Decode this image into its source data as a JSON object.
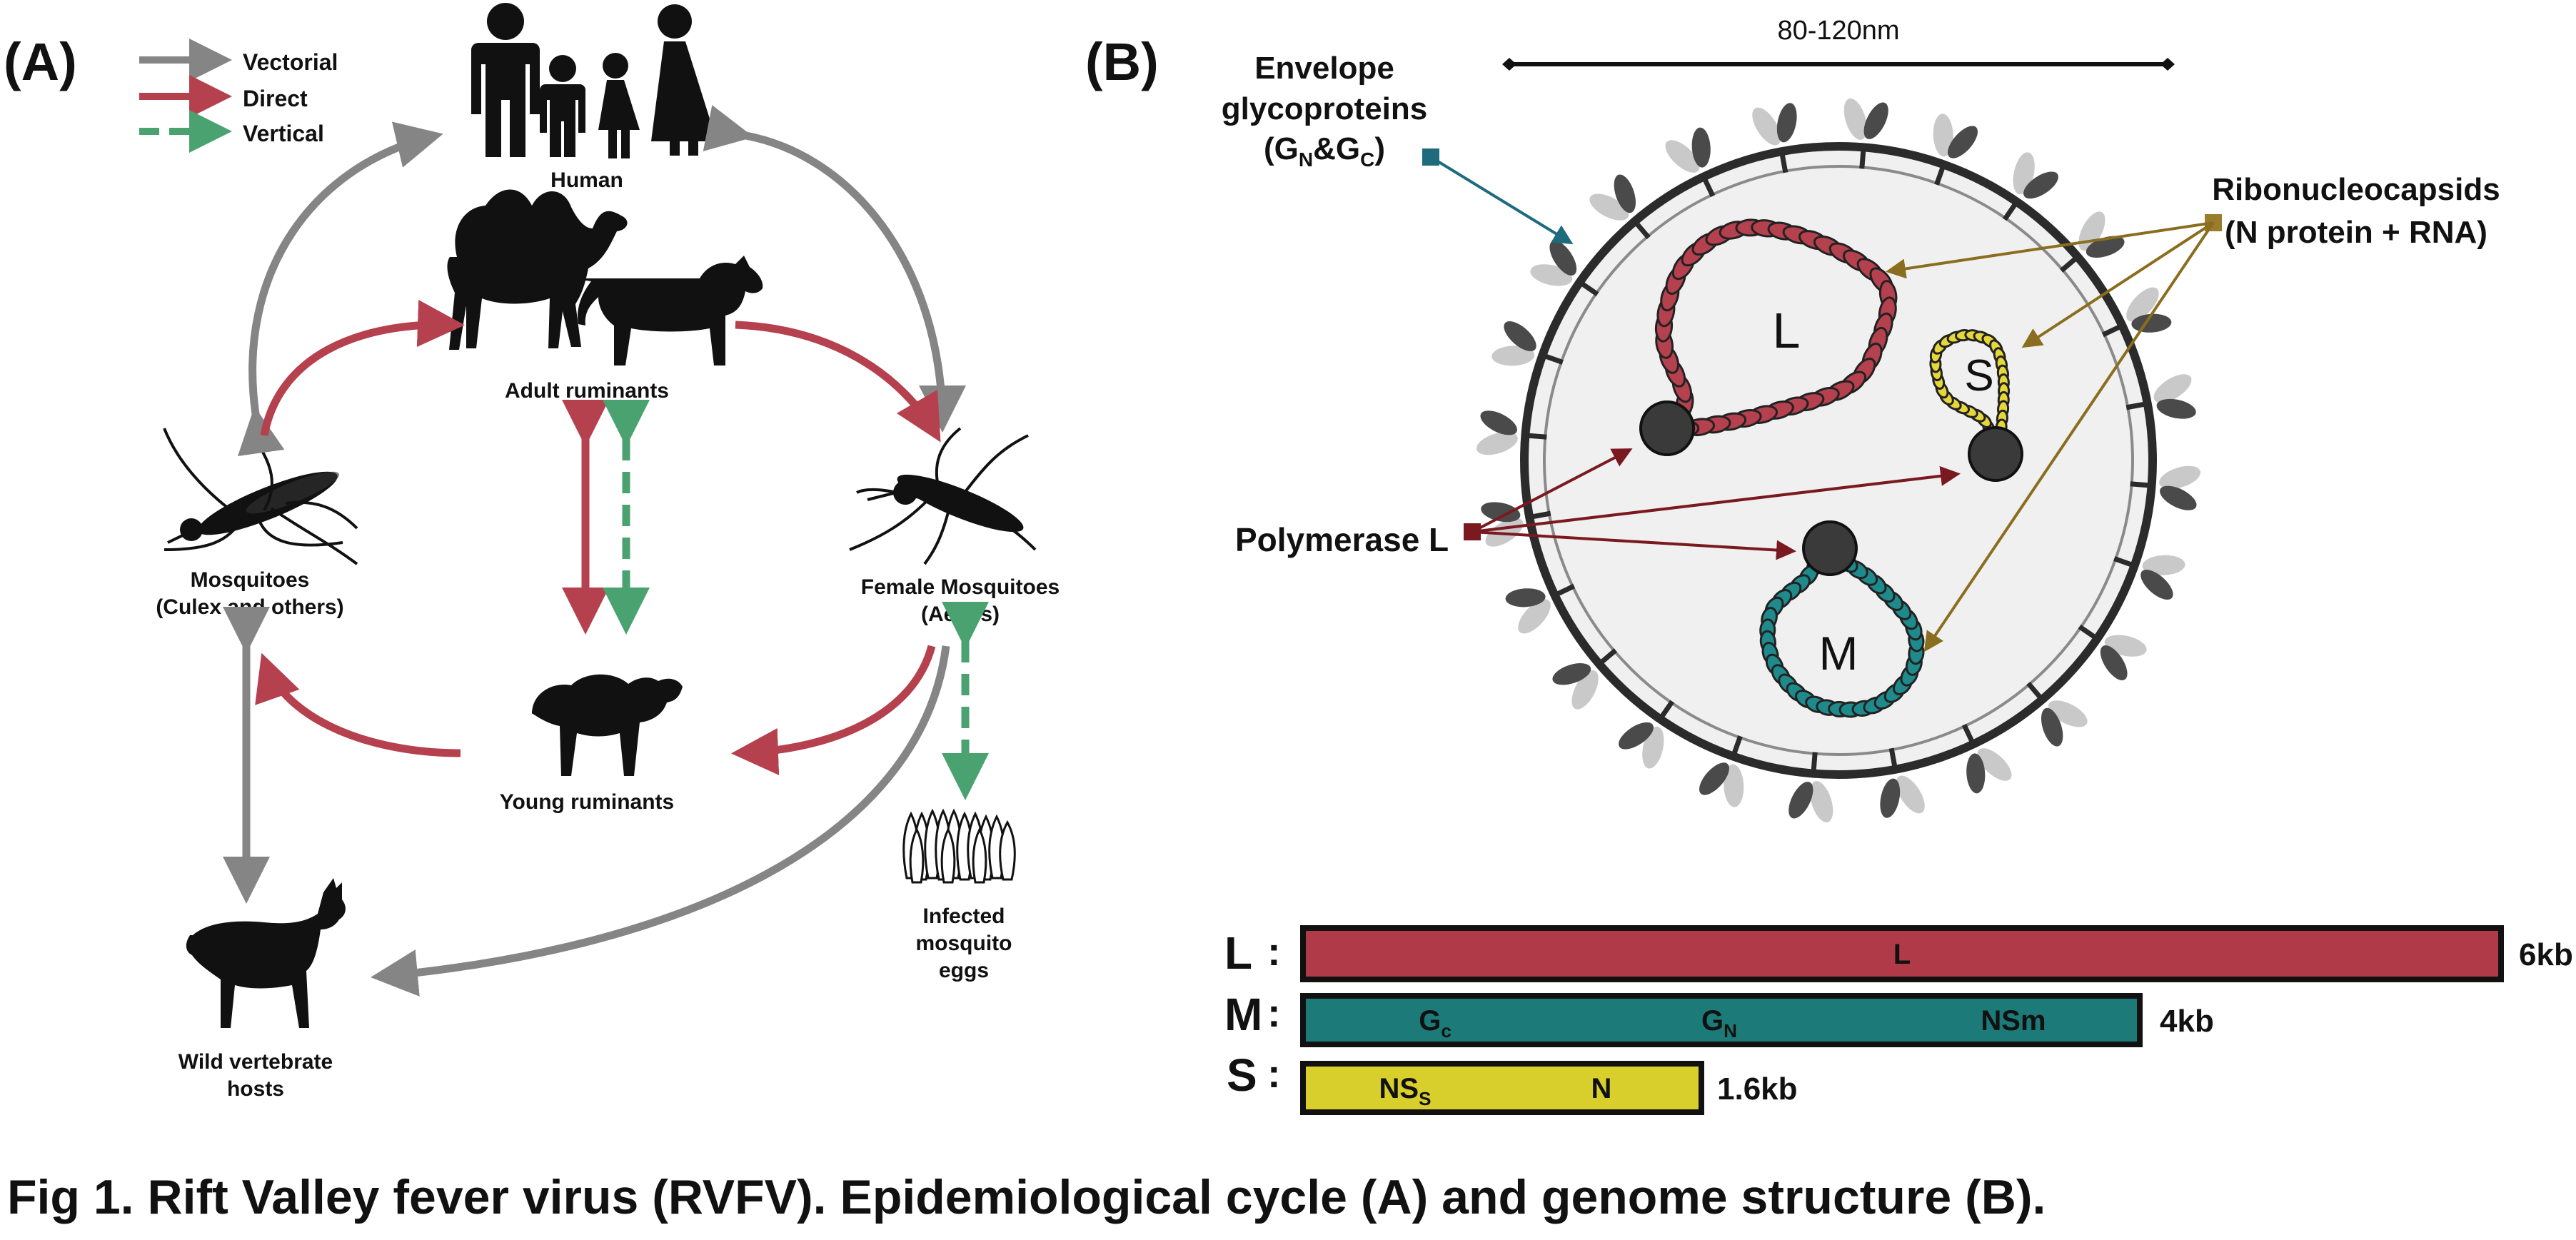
{
  "caption": "Fig 1. Rift Valley fever virus (RVFV). Epidemiological cycle (A) and genome structure (B).",
  "panel_a": {
    "label": "(A)",
    "legend": [
      {
        "label": "Vectorial",
        "style": "solid",
        "color": "#858585"
      },
      {
        "label": "Direct",
        "style": "solid",
        "color": "#b5404e"
      },
      {
        "label": "Vertical",
        "style": "dashed",
        "color": "#4aa270"
      }
    ],
    "nodes": {
      "human": "Human",
      "adult_ruminants": "Adult ruminants",
      "mosquitoes_line1": "Mosquitoes",
      "mosquitoes_line2": "(Culex and others)",
      "female_mosquitoes_line1": "Female Mosquitoes",
      "female_mosquitoes_line2": "(Aedes)",
      "young_ruminants": "Young ruminants",
      "wild_line1": "Wild vertebrate",
      "wild_line2": "hosts",
      "eggs_line1": "Infected",
      "eggs_line2": "mosquito",
      "eggs_line3": "eggs"
    }
  },
  "panel_b": {
    "label": "(B)",
    "size_label": "80-120nm",
    "envelope_line1": "Envelope",
    "envelope_line2": "glycoproteins",
    "envelope_line3_open": "(G",
    "envelope_sub_n": "N",
    "envelope_amp": "&G",
    "envelope_sub_c": "C",
    "envelope_close": ")",
    "ribo_line1": "Ribonucleocapsids",
    "ribo_line2": "(N protein + RNA)",
    "polymerase": "Polymerase L",
    "segments": {
      "L": "L",
      "S": "S",
      "M": "M"
    },
    "colors": {
      "L": "#b5404e",
      "M": "#1f8a8c",
      "S": "#e5d73a"
    },
    "genome": [
      {
        "segment": "L",
        "colon": ":",
        "size": "6kb",
        "genes": [
          {
            "text": "L",
            "sub": ""
          }
        ]
      },
      {
        "segment": "M",
        "colon": ":",
        "size": "4kb",
        "genes": [
          {
            "text": "G",
            "sub": "c"
          },
          {
            "text": "G",
            "sub": "N"
          },
          {
            "text": "NSm",
            "sub": ""
          }
        ]
      },
      {
        "segment": "S",
        "colon": ":",
        "size": "1.6kb",
        "genes": [
          {
            "text": "NS",
            "sub": "S"
          },
          {
            "text": "N",
            "sub": ""
          }
        ]
      }
    ],
    "genome_colors": {
      "L": "#b03a48",
      "M": "#1c7a78",
      "S": "#d8cf2c"
    }
  }
}
